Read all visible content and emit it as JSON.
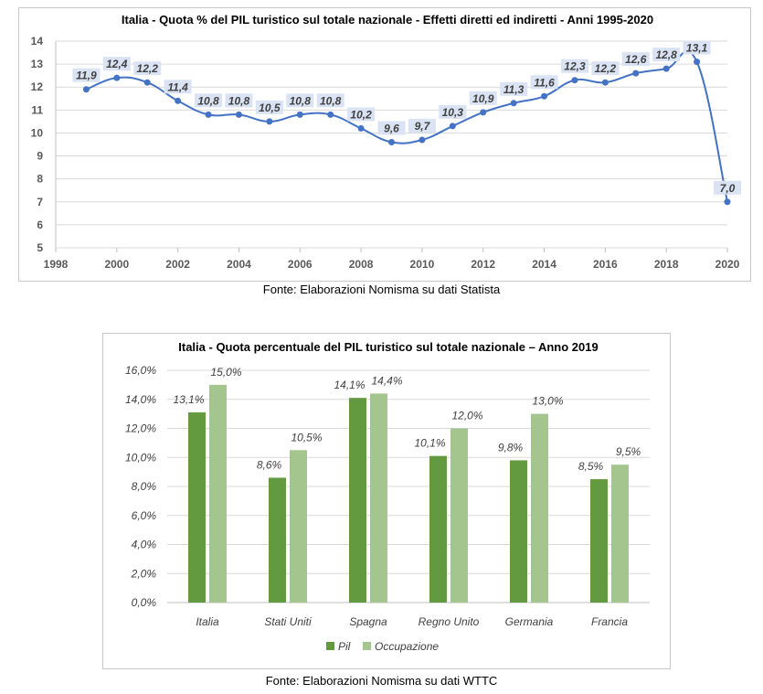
{
  "chart_data": [
    {
      "type": "line",
      "title": "Italia - Quota % del PIL turistico sul totale nazionale - Effetti diretti ed indiretti - Anni 1995-2020",
      "xlabel": "",
      "ylabel": "",
      "x": [
        1999,
        2000,
        2001,
        2002,
        2003,
        2004,
        2005,
        2006,
        2007,
        2008,
        2009,
        2010,
        2011,
        2012,
        2013,
        2014,
        2015,
        2016,
        2017,
        2018,
        2019,
        2020
      ],
      "series": [
        {
          "values": [
            11.9,
            12.4,
            12.2,
            11.4,
            10.8,
            10.8,
            10.5,
            10.8,
            10.8,
            10.2,
            9.6,
            9.7,
            10.3,
            10.9,
            11.3,
            11.6,
            12.3,
            12.2,
            12.6,
            12.8,
            13.1,
            7.0
          ],
          "labels": [
            "11,9",
            "12,4",
            "12,2",
            "11,4",
            "10,8",
            "10,8",
            "10,5",
            "10,8",
            "10,8",
            "10,2",
            "9,6",
            "9,7",
            "10,3",
            "10,9",
            "11,3",
            "11,6",
            "12,3",
            "12,2",
            "12,6",
            "12,8",
            "13,1",
            "7,0"
          ]
        }
      ],
      "xlim": [
        1998,
        2020
      ],
      "ylim": [
        5,
        14
      ],
      "x_ticks": [
        "1998",
        "2000",
        "2002",
        "2004",
        "2006",
        "2008",
        "2010",
        "2012",
        "2014",
        "2016",
        "2018",
        "2020"
      ],
      "y_ticks": [
        "5",
        "6",
        "7",
        "8",
        "9",
        "10",
        "11",
        "12",
        "13",
        "14"
      ],
      "grid": true,
      "line_color": "#4472c4",
      "label_bg": "#dae3f3",
      "source": "Fonte: Elaborazioni Nomisma su dati Statista"
    },
    {
      "type": "bar",
      "title": "Italia - Quota percentuale del PIL turistico sul totale nazionale – Anno 2019",
      "xlabel": "",
      "ylabel": "",
      "categories": [
        "Italia",
        "Stati Uniti",
        "Spagna",
        "Regno Unito",
        "Germania",
        "Francia"
      ],
      "series": [
        {
          "name": "Pil",
          "values": [
            13.1,
            8.6,
            14.1,
            10.1,
            9.8,
            8.5
          ],
          "labels": [
            "13,1%",
            "8,6%",
            "14,1%",
            "10,1%",
            "9,8%",
            "8,5%"
          ],
          "color": "#639a3f"
        },
        {
          "name": "Occupazione",
          "values": [
            15.0,
            10.5,
            14.4,
            12.0,
            13.0,
            9.5
          ],
          "labels": [
            "15,0%",
            "10,5%",
            "14,4%",
            "12,0%",
            "13,0%",
            "9,5%"
          ],
          "color": "#a5c58f"
        }
      ],
      "ylim": [
        0,
        16
      ],
      "y_ticks": [
        "0,0%",
        "2,0%",
        "4,0%",
        "6,0%",
        "8,0%",
        "10,0%",
        "12,0%",
        "14,0%",
        "16,0%"
      ],
      "grid": true,
      "legend": "bottom",
      "source": "Fonte: Elaborazioni Nomisma su dati WTTC"
    }
  ]
}
